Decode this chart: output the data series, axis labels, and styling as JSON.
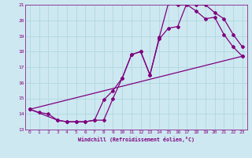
{
  "xlabel": "Windchill (Refroidissement éolien,°C)",
  "bg_color": "#cde8f0",
  "line_color": "#800080",
  "grid_color": "#b0d8e0",
  "xlim": [
    -0.5,
    23.5
  ],
  "ylim": [
    13,
    21
  ],
  "yticks": [
    13,
    14,
    15,
    16,
    17,
    18,
    19,
    20,
    21
  ],
  "xticks": [
    0,
    1,
    2,
    3,
    4,
    5,
    6,
    7,
    8,
    9,
    10,
    11,
    12,
    13,
    14,
    15,
    16,
    17,
    18,
    19,
    20,
    21,
    22,
    23
  ],
  "line1_x": [
    0,
    1,
    2,
    3,
    4,
    5,
    6,
    7,
    8,
    9,
    10,
    11,
    12,
    13,
    14,
    15,
    16,
    17,
    18,
    19,
    20,
    21,
    22,
    23
  ],
  "line1_y": [
    14.3,
    14.1,
    14.0,
    13.6,
    13.5,
    13.5,
    13.5,
    13.6,
    14.9,
    15.5,
    16.3,
    17.8,
    18.0,
    16.5,
    18.8,
    19.5,
    19.6,
    21.1,
    21.0,
    21.0,
    20.5,
    20.1,
    19.1,
    18.3
  ],
  "line2_x": [
    0,
    3,
    4,
    5,
    6,
    7,
    8,
    9,
    10,
    11,
    12,
    13,
    14,
    15,
    16,
    17,
    18,
    19,
    20,
    21,
    22,
    23
  ],
  "line2_y": [
    14.3,
    13.6,
    13.5,
    13.5,
    13.5,
    13.6,
    13.6,
    15.0,
    16.3,
    17.8,
    18.0,
    16.5,
    18.9,
    21.1,
    21.0,
    21.0,
    20.6,
    20.1,
    20.2,
    19.1,
    18.3,
    17.7
  ],
  "line3_x": [
    0,
    23
  ],
  "line3_y": [
    14.3,
    17.7
  ]
}
